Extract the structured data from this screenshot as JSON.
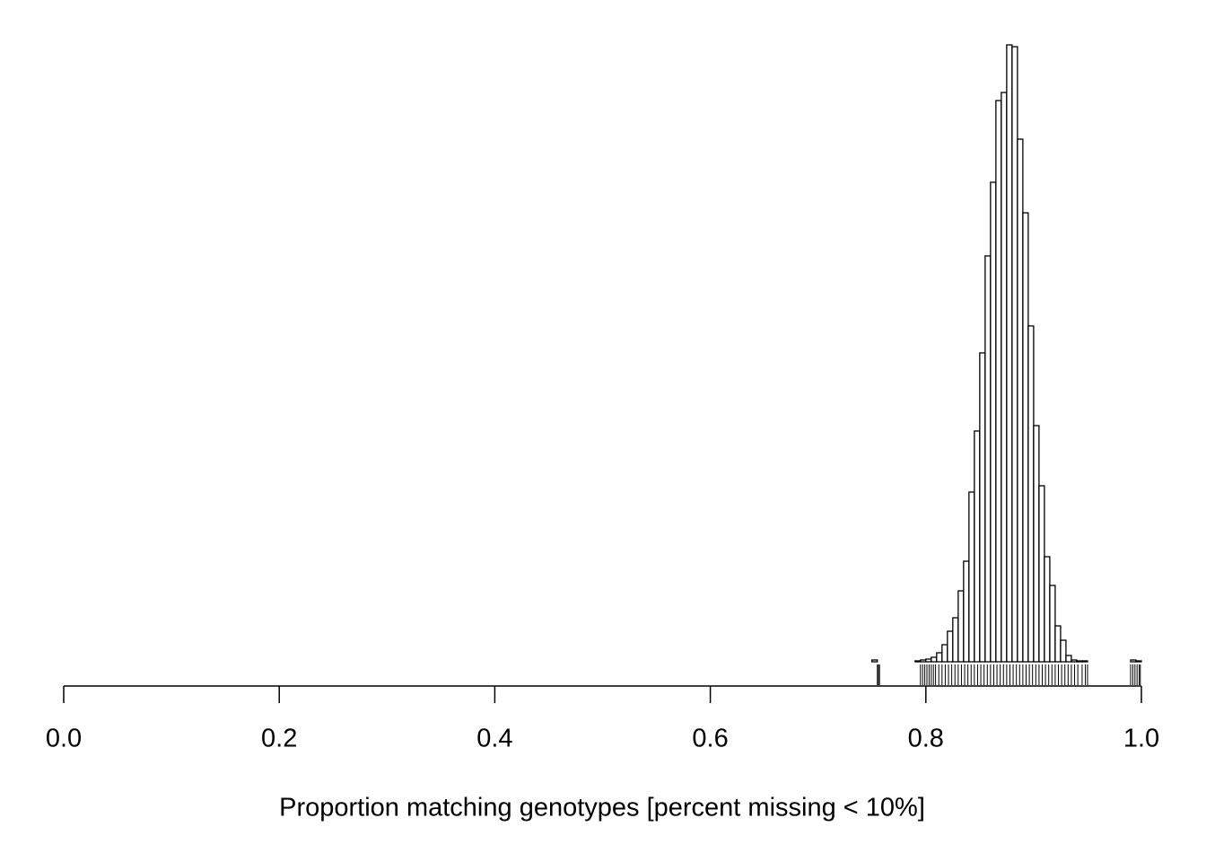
{
  "chart_data": {
    "type": "histogram",
    "xlabel": "Proportion matching genotypes [percent missing < 10%]",
    "bins": [
      0,
      0.005,
      0.01,
      0.015,
      0.02,
      0.025,
      0.03,
      0.035,
      0.04,
      0.045,
      0.05,
      0.055,
      0.06,
      0.065,
      0.07,
      0.075,
      0.08,
      0.085,
      0.09,
      0.095,
      0.1,
      0.105,
      0.11,
      0.115,
      0.12,
      0.125,
      0.13,
      0.135,
      0.14,
      0.145,
      0.15,
      0.155,
      0.16,
      0.165,
      0.17,
      0.175,
      0.18,
      0.185,
      0.19,
      0.195,
      0.2,
      0.205,
      0.21,
      0.215,
      0.22,
      0.225,
      0.23,
      0.235,
      0.24,
      0.245,
      0.25,
      0.255,
      0.26,
      0.265,
      0.27,
      0.275,
      0.28,
      0.285,
      0.29,
      0.295,
      0.3,
      0.305,
      0.31,
      0.315,
      0.32,
      0.325,
      0.33,
      0.335,
      0.34,
      0.345,
      0.35,
      0.355,
      0.36,
      0.365,
      0.37,
      0.375,
      0.38,
      0.385,
      0.39,
      0.395,
      0.4,
      0.405,
      0.41,
      0.415,
      0.42,
      0.425,
      0.43,
      0.435,
      0.44,
      0.445,
      0.45,
      0.455,
      0.46,
      0.465,
      0.47,
      0.475,
      0.48,
      0.485,
      0.49,
      0.495,
      0.5,
      0.505,
      0.51,
      0.515,
      0.52,
      0.525,
      0.53,
      0.535,
      0.54,
      0.545,
      0.55,
      0.555,
      0.56,
      0.565,
      0.57,
      0.575,
      0.58,
      0.585,
      0.59,
      0.595,
      0.6,
      0.605,
      0.61,
      0.615,
      0.62,
      0.625,
      0.63,
      0.635,
      0.64,
      0.645,
      0.65,
      0.655,
      0.66,
      0.665,
      0.67,
      0.675,
      0.68,
      0.685,
      0.69,
      0.695,
      0.7,
      0.705,
      0.71,
      0.715,
      0.72,
      0.725,
      0.73,
      0.735,
      0.74,
      0.745,
      0.75,
      0.755,
      0.76,
      0.765,
      0.77,
      0.775,
      0.78,
      0.785,
      0.79,
      0.795,
      0.8,
      0.805,
      0.81,
      0.815,
      0.82,
      0.825,
      0.83,
      0.835,
      0.84,
      0.845,
      0.85,
      0.855,
      0.86,
      0.865,
      0.87,
      0.875,
      0.88,
      0.885,
      0.89,
      0.895,
      0.9,
      0.905,
      0.91,
      0.915,
      0.92,
      0.925,
      0.93,
      0.935,
      0.94,
      0.945,
      0.95,
      0.955,
      0.96,
      0.965,
      0.97,
      0.975,
      0.98,
      0.985,
      0.99,
      0.995,
      1
    ],
    "counts": [
      0,
      0,
      0,
      0,
      0,
      0,
      0,
      0,
      0,
      0,
      0,
      0,
      0,
      0,
      0,
      0,
      0,
      0,
      0,
      0,
      0,
      0,
      0,
      0,
      0,
      0,
      0,
      0,
      0,
      0,
      0,
      0,
      0,
      0,
      0,
      0,
      0,
      0,
      0,
      0,
      0,
      0,
      0,
      0,
      0,
      0,
      0,
      0,
      0,
      0,
      0,
      0,
      0,
      0,
      0,
      0,
      0,
      0,
      0,
      0,
      0,
      0,
      0,
      0,
      0,
      0,
      0,
      0,
      0,
      0,
      0,
      0,
      0,
      0,
      0,
      0,
      0,
      0,
      0,
      0,
      0,
      0,
      0,
      0,
      0,
      0,
      0,
      0,
      0,
      0,
      0,
      0,
      0,
      0,
      0,
      0,
      0,
      0,
      0,
      0,
      0,
      0,
      0,
      0,
      0,
      0,
      0,
      0,
      0,
      0,
      0,
      0,
      0,
      0,
      0,
      0,
      0,
      0,
      0,
      0,
      0,
      0,
      0,
      0,
      0,
      0,
      0,
      0,
      0,
      0,
      0,
      0,
      0,
      0,
      0,
      0,
      0,
      0,
      0,
      0,
      0,
      0,
      0,
      0,
      0,
      0,
      0,
      0,
      0,
      0,
      2,
      0,
      0,
      0,
      0,
      0,
      0,
      0,
      1,
      2,
      3,
      5,
      10,
      19,
      34,
      49,
      79,
      112,
      189,
      257,
      344,
      452,
      534,
      625,
      634,
      687,
      685,
      582,
      500,
      374,
      263,
      196,
      117,
      85,
      40,
      24,
      7,
      2,
      1,
      1,
      0,
      0,
      0,
      0,
      0,
      0,
      0,
      0,
      2,
      1
    ],
    "rug": [
      0.755,
      0.756,
      0.757,
      0.795,
      0.797,
      0.799,
      0.801,
      0.803,
      0.805,
      0.807,
      0.809,
      0.812,
      0.815,
      0.818,
      0.821,
      0.824,
      0.827,
      0.83,
      0.833,
      0.836,
      0.839,
      0.842,
      0.845,
      0.848,
      0.851,
      0.854,
      0.857,
      0.86,
      0.863,
      0.866,
      0.869,
      0.872,
      0.875,
      0.878,
      0.881,
      0.884,
      0.887,
      0.89,
      0.893,
      0.896,
      0.899,
      0.902,
      0.905,
      0.908,
      0.911,
      0.914,
      0.917,
      0.92,
      0.923,
      0.926,
      0.929,
      0.932,
      0.935,
      0.938,
      0.941,
      0.945,
      0.948,
      0.95,
      0.99,
      0.992,
      0.994,
      0.996,
      0.998,
      0.999
    ],
    "color": "#ffffff",
    "xlim": [
      0,
      1
    ],
    "ylim": [
      0,
      700
    ],
    "xticks": [
      {
        "value": 0,
        "label": "0.0"
      },
      0.2,
      0.4,
      0.6,
      0.8,
      {
        "value": 1,
        "label": "1.0"
      }
    ]
  }
}
